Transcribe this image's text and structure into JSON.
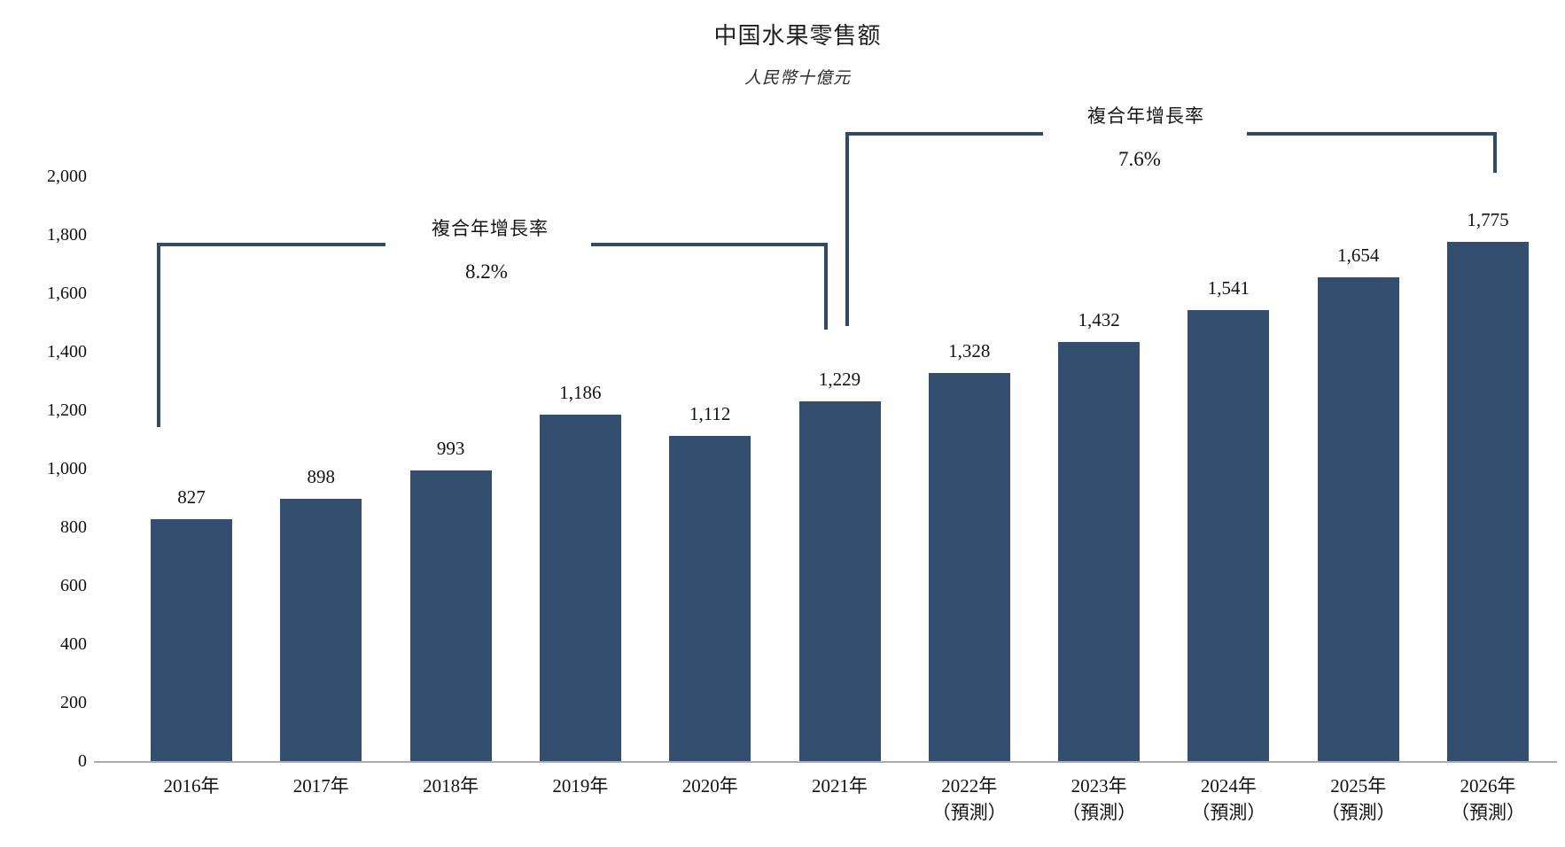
{
  "chart_data": {
    "type": "bar",
    "title": "中国水果零售额",
    "subtitle": "人民幣十億元",
    "categories": [
      {
        "year": "2016年",
        "note": ""
      },
      {
        "year": "2017年",
        "note": ""
      },
      {
        "year": "2018年",
        "note": ""
      },
      {
        "year": "2019年",
        "note": ""
      },
      {
        "year": "2020年",
        "note": ""
      },
      {
        "year": "2021年",
        "note": ""
      },
      {
        "year": "2022年",
        "note": "（預測）"
      },
      {
        "year": "2023年",
        "note": "（預測）"
      },
      {
        "year": "2024年",
        "note": "（預測）"
      },
      {
        "year": "2025年",
        "note": "（預測）"
      },
      {
        "year": "2026年",
        "note": "（預測）"
      }
    ],
    "values": [
      827,
      898,
      993,
      1186,
      1112,
      1229,
      1328,
      1432,
      1541,
      1654,
      1775
    ],
    "value_labels": [
      "827",
      "898",
      "993",
      "1,186",
      "1,112",
      "1,229",
      "1,328",
      "1,432",
      "1,541",
      "1,654",
      "1,775"
    ],
    "y_axis": {
      "min": 0,
      "max": 2000,
      "step": 200,
      "tick_labels": [
        "0",
        "200",
        "400",
        "600",
        "800",
        "1,000",
        "1,200",
        "1,400",
        "1,600",
        "1,800",
        "2,000"
      ]
    },
    "annotations": [
      {
        "label": "複合年增長率",
        "value": "8.2%",
        "from": "2016年",
        "to": "2021年"
      },
      {
        "label": "複合年增長率",
        "value": "7.6%",
        "from": "2021年",
        "to": "2026年"
      }
    ],
    "grid": false,
    "legend": null,
    "colors": {
      "bar": "#344E70",
      "bracket": "#2F4A6B",
      "axis_line": "#ACACAC",
      "text": "#1A1A1A"
    }
  }
}
